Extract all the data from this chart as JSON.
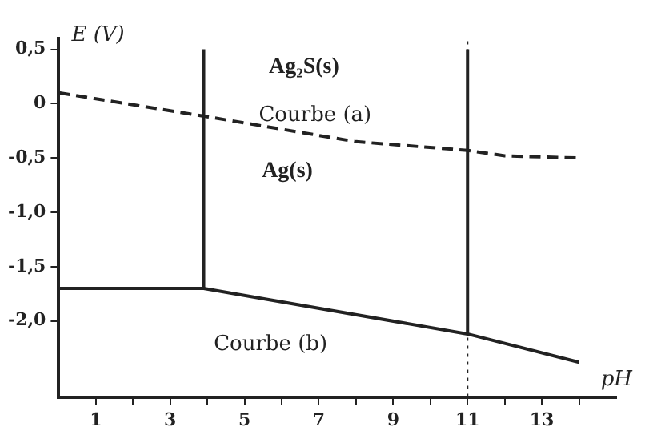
{
  "chart_data": {
    "type": "line",
    "xlabel": "pH",
    "ylabel": "E (V)",
    "xlim": [
      0,
      15
    ],
    "ylim": [
      -2.7,
      0.6
    ],
    "xticks": [
      1,
      {
        "value": 2,
        "label": null
      },
      3,
      {
        "value": 4,
        "label": null
      },
      5,
      {
        "value": 6,
        "label": null
      },
      7,
      {
        "value": 8,
        "label": null
      },
      9,
      {
        "value": 10,
        "label": null
      },
      11,
      {
        "value": 12,
        "label": null
      },
      13,
      {
        "value": 14,
        "label": null
      }
    ],
    "yticks": [
      {
        "value": 0.5,
        "label": "0,5"
      },
      0,
      {
        "value": -0.5,
        "label": "-0,5"
      },
      {
        "value": -1,
        "label": "-1,0"
      },
      {
        "value": -1.5,
        "label": "-1,5"
      },
      {
        "value": -2,
        "label": "-2,0"
      }
    ],
    "grid": false,
    "legend": false,
    "series": [
      {
        "color": "#222222",
        "x": [
          0,
          4,
          8,
          11,
          12,
          14
        ],
        "values": [
          0.1,
          -0.12,
          -0.35,
          -0.43,
          -0.48,
          -0.5
        ],
        "line_style": "dashed"
      },
      {
        "color": "#222222",
        "x": [
          0,
          3.9,
          11,
          14
        ],
        "values": [
          -1.7,
          -1.7,
          -2.12,
          -2.38
        ],
        "line_style": "solid"
      },
      {
        "color": "#222222",
        "x": [
          3.9,
          3.9
        ],
        "values": [
          -1.7,
          0.5
        ],
        "line_style": "solid"
      },
      {
        "color": "#222222",
        "x": [
          11,
          11
        ],
        "values": [
          -2.12,
          0.5
        ],
        "line_style": "solid"
      }
    ],
    "ref_lines": [
      {
        "axis": "x",
        "value": 11,
        "label": null,
        "color": "#222222",
        "line_style": "dotted"
      }
    ],
    "annotations": [
      "Ag₂S(s)",
      "Courbe (a)",
      "Ag(s)",
      "Courbe (b)"
    ]
  }
}
